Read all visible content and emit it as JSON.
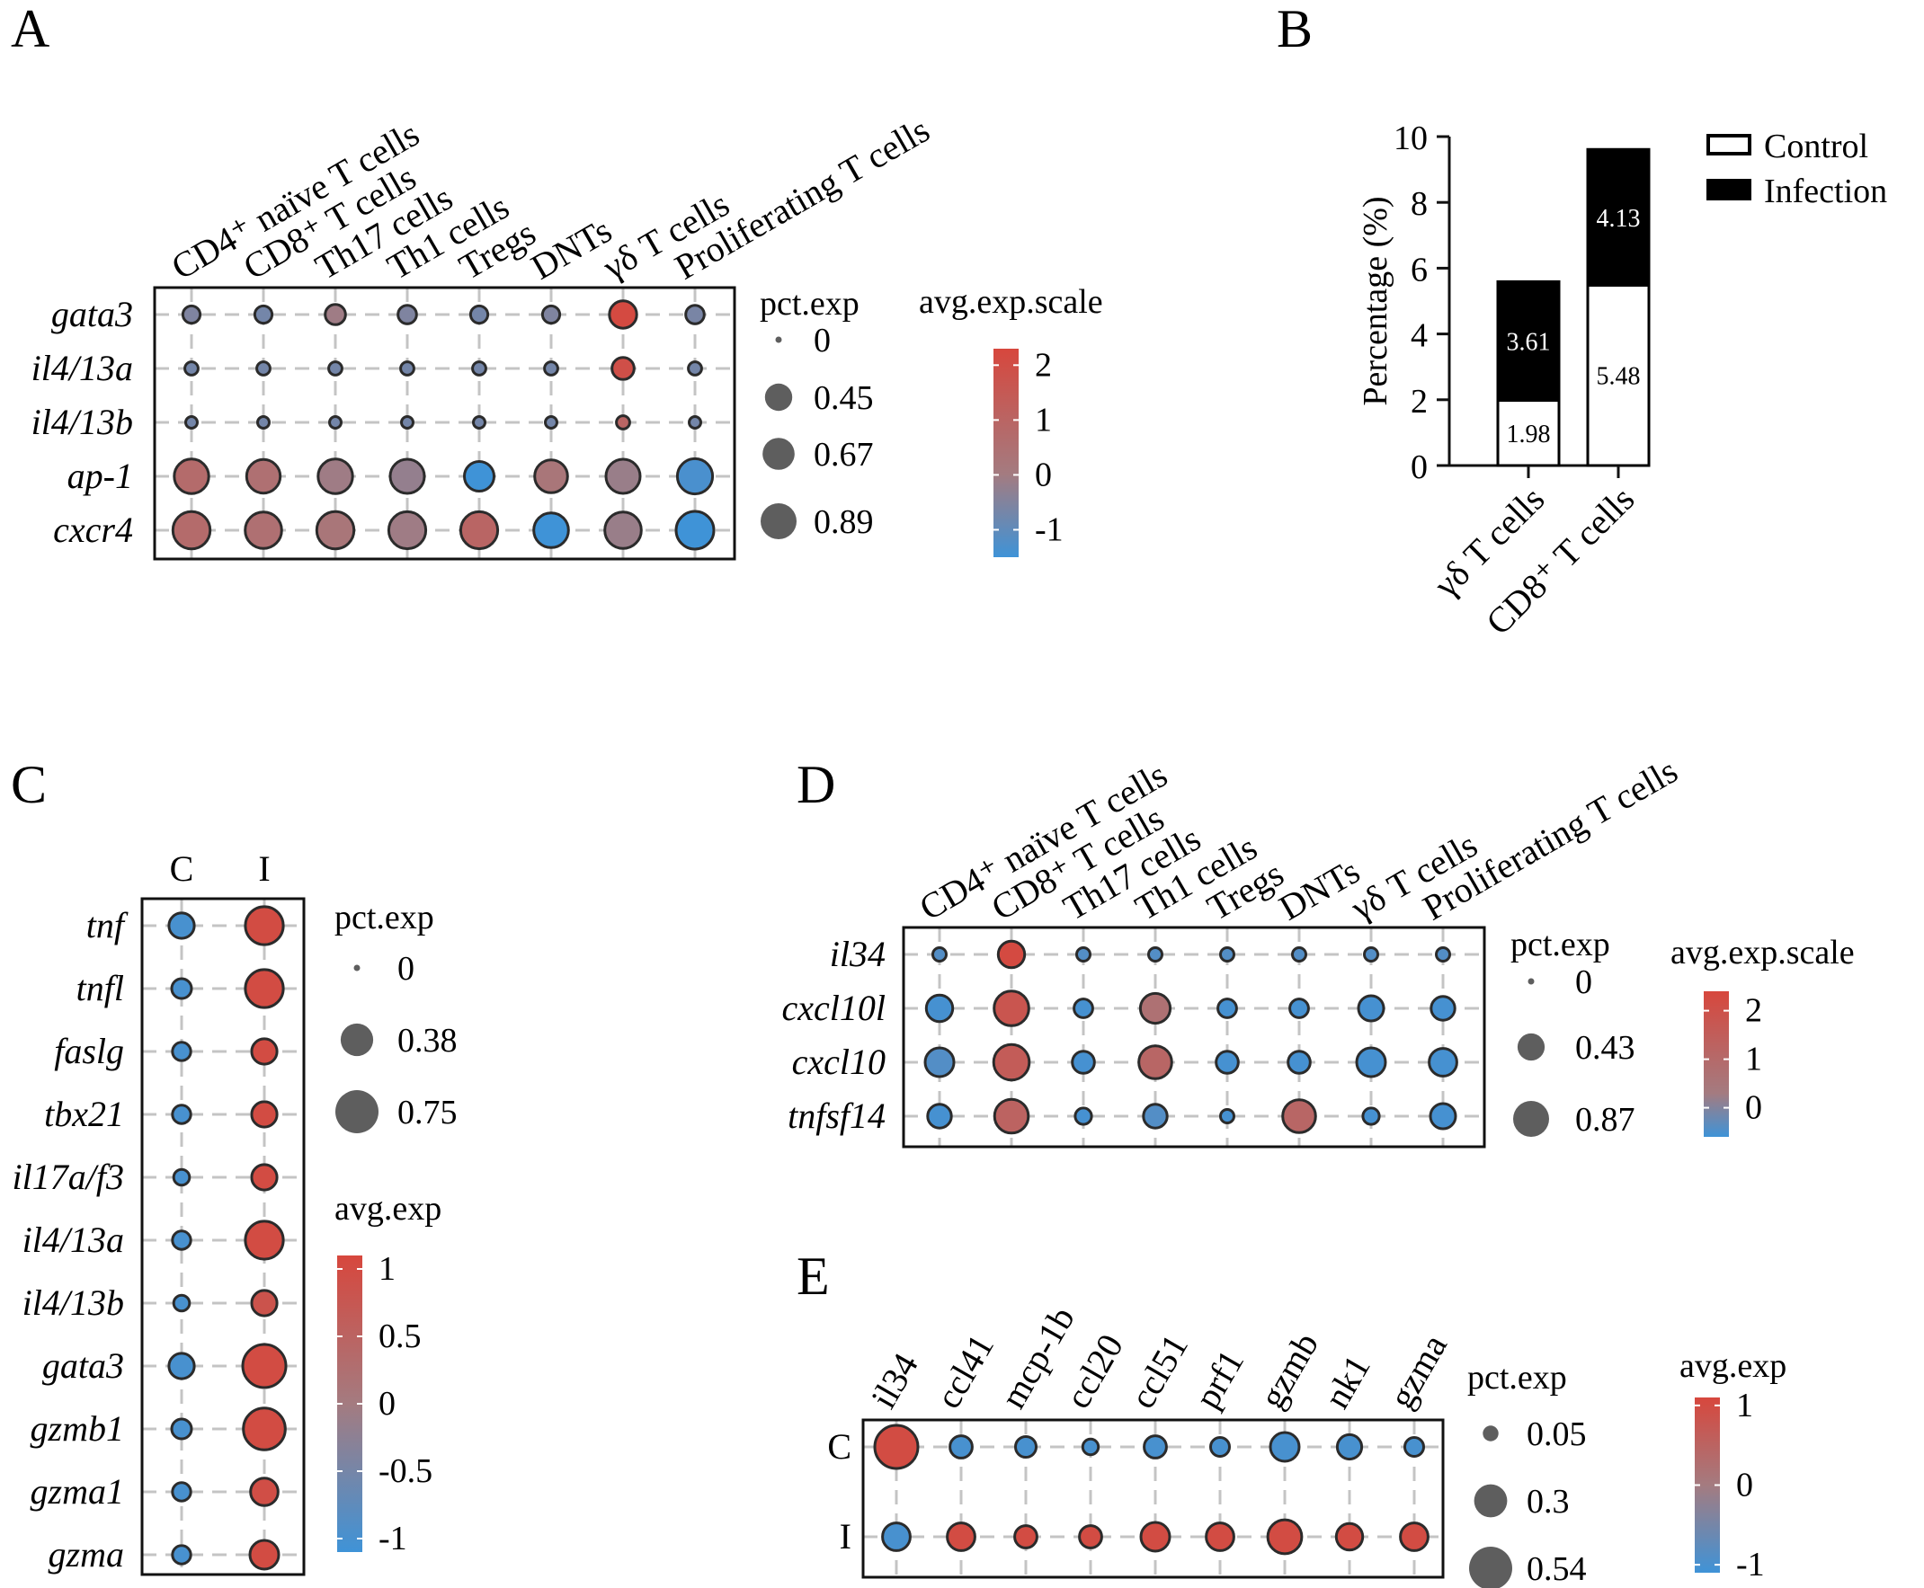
{
  "chart_data": [
    {
      "panel": "A",
      "type": "dotplot",
      "columns": [
        "CD4⁺ naïve T cells",
        "CD8⁺ T cells",
        "Th17 cells",
        "Th1 cells",
        "Tregs",
        "DNTs",
        "γδ T cells",
        "Proliferating T  cells"
      ],
      "rows": [
        "gata3",
        "il4/13a",
        "il4/13b",
        "ap-1",
        "cxcr4"
      ],
      "pct_exp": [
        [
          0.12,
          0.12,
          0.2,
          0.15,
          0.12,
          0.12,
          0.45,
          0.15
        ],
        [
          0.05,
          0.05,
          0.05,
          0.05,
          0.05,
          0.05,
          0.25,
          0.05
        ],
        [
          0.03,
          0.03,
          0.03,
          0.03,
          0.03,
          0.03,
          0.05,
          0.03
        ],
        [
          0.8,
          0.75,
          0.8,
          0.78,
          0.55,
          0.72,
          0.78,
          0.85
        ],
        [
          0.97,
          0.92,
          0.97,
          0.95,
          0.95,
          0.82,
          0.92,
          1.0
        ]
      ],
      "avg_exp_scale": [
        [
          -0.3,
          -0.5,
          0.3,
          -0.3,
          -0.5,
          -0.3,
          2.2,
          -0.4
        ],
        [
          -0.5,
          -0.5,
          -0.5,
          -0.5,
          -0.5,
          -0.5,
          2.0,
          -0.5
        ],
        [
          -0.5,
          -0.5,
          -0.5,
          -0.5,
          -0.5,
          -0.5,
          1.2,
          -0.5
        ],
        [
          1.0,
          0.8,
          0.3,
          0.1,
          -1.5,
          0.6,
          0.2,
          -1.3
        ],
        [
          1.0,
          0.8,
          0.6,
          0.3,
          1.2,
          -1.5,
          0.2,
          -1.5
        ]
      ],
      "size_legend": {
        "title": "pct.exp",
        "labels": [
          "0",
          "0.45",
          "0.67",
          "0.89"
        ],
        "values": [
          0,
          0.45,
          0.67,
          0.89
        ]
      },
      "color_legend": {
        "title": "avg.exp.scale",
        "labels": [
          "2",
          "1",
          "0",
          "-1"
        ],
        "values": [
          2,
          1,
          0,
          -1
        ],
        "range": [
          -1.5,
          2.3
        ]
      }
    },
    {
      "panel": "B",
      "type": "stacked_bar",
      "categories": [
        "γδ T cells",
        "CD8⁺ T cells"
      ],
      "series": [
        {
          "name": "Control",
          "values": [
            1.98,
            5.48
          ],
          "labels": [
            "1.98",
            "5.48"
          ]
        },
        {
          "name": "Infection",
          "values": [
            3.61,
            4.13
          ],
          "labels": [
            "3.61",
            "4.13"
          ]
        }
      ],
      "ylabel": "Percentage   (%)",
      "yticks": [
        "0",
        "2",
        "4",
        "6",
        "8",
        "10"
      ],
      "ylim": [
        0,
        10
      ]
    },
    {
      "panel": "C",
      "type": "dotplot",
      "columns": [
        "C",
        "I"
      ],
      "rows": [
        "tnf",
        "tnfl",
        "faslg",
        "tbx21",
        "il17a/f3",
        "il4/13a",
        "il4/13b",
        "gata3",
        "gzmb1",
        "gzma1",
        "gzma"
      ],
      "pct_exp": [
        [
          0.2,
          0.55
        ],
        [
          0.1,
          0.55
        ],
        [
          0.08,
          0.2
        ],
        [
          0.08,
          0.2
        ],
        [
          0.05,
          0.2
        ],
        [
          0.08,
          0.55
        ],
        [
          0.05,
          0.2
        ],
        [
          0.2,
          0.75
        ],
        [
          0.1,
          0.7
        ],
        [
          0.08,
          0.25
        ],
        [
          0.08,
          0.28
        ]
      ],
      "avg_exp": [
        [
          -1,
          1
        ],
        [
          -1,
          1
        ],
        [
          -1,
          1
        ],
        [
          -1,
          1
        ],
        [
          -1,
          1
        ],
        [
          -1,
          1
        ],
        [
          -1,
          0.85
        ],
        [
          -1,
          1
        ],
        [
          -1,
          1
        ],
        [
          -1,
          0.95
        ],
        [
          -1,
          1
        ]
      ],
      "size_legend": {
        "title": "pct.exp",
        "labels": [
          "0",
          "0.38",
          "0.75"
        ],
        "values": [
          0,
          0.38,
          0.75
        ]
      },
      "color_legend": {
        "title": "avg.exp",
        "labels": [
          "1",
          "0.5",
          "0",
          "-0.5",
          "-1"
        ],
        "values": [
          1,
          0.5,
          0,
          -0.5,
          -1
        ],
        "range": [
          -1.1,
          1.1
        ]
      }
    },
    {
      "panel": "D",
      "type": "dotplot",
      "columns": [
        "CD4⁺ naïve T cells",
        "CD8⁺ T cells",
        "Th17 cells",
        "Th1 cells",
        "Tregs",
        "DNTs",
        "γδ T cells",
        "Proliferating T  cells"
      ],
      "rows": [
        "il34",
        "cxcl10l",
        "cxcl10",
        "tnfsf14"
      ],
      "pct_exp": [
        [
          0.05,
          0.4,
          0.05,
          0.05,
          0.05,
          0.05,
          0.05,
          0.05
        ],
        [
          0.4,
          0.8,
          0.15,
          0.55,
          0.15,
          0.15,
          0.35,
          0.3
        ],
        [
          0.5,
          0.85,
          0.25,
          0.7,
          0.25,
          0.25,
          0.5,
          0.45
        ],
        [
          0.3,
          0.75,
          0.1,
          0.3,
          0.05,
          0.7,
          0.1,
          0.35
        ]
      ],
      "avg_exp_scale": [
        [
          -0.3,
          2.3,
          -0.3,
          -0.3,
          -0.3,
          -0.3,
          -0.3,
          -0.3
        ],
        [
          -0.5,
          2.0,
          -0.5,
          1.2,
          -0.5,
          -0.5,
          -0.5,
          -0.5
        ],
        [
          -0.3,
          1.8,
          -0.5,
          1.5,
          -0.5,
          -0.5,
          -0.5,
          -0.5
        ],
        [
          -0.5,
          1.6,
          -0.5,
          -0.3,
          -0.5,
          1.5,
          -0.5,
          -0.5
        ]
      ],
      "size_legend": {
        "title": "pct.exp",
        "labels": [
          "0",
          "0.43",
          "0.87"
        ],
        "values": [
          0,
          0.43,
          0.87
        ]
      },
      "color_legend": {
        "title": "avg.exp.scale",
        "labels": [
          "2",
          "1",
          "0"
        ],
        "values": [
          2,
          1,
          0
        ],
        "range": [
          -0.6,
          2.4
        ]
      }
    },
    {
      "panel": "E",
      "type": "dotplot",
      "columns": [
        "il34",
        "ccl41",
        "mcp-1b",
        "ccl20",
        "ccl51",
        "prf1",
        "gzmb",
        "nk1",
        "gzma"
      ],
      "rows": [
        "C",
        "I"
      ],
      "pct_exp": [
        [
          0.54,
          0.12,
          0.1,
          0.05,
          0.12,
          0.08,
          0.22,
          0.15,
          0.08
        ],
        [
          0.2,
          0.2,
          0.12,
          0.12,
          0.22,
          0.2,
          0.32,
          0.18,
          0.2
        ]
      ],
      "avg_exp": [
        [
          1,
          -1,
          -1,
          -1,
          -1,
          -1,
          -1,
          -1,
          -1
        ],
        [
          -1,
          1,
          1,
          1,
          1,
          1,
          1,
          1,
          1
        ]
      ],
      "size_legend": {
        "title": "pct.exp",
        "labels": [
          "0.05",
          "0.3",
          "0.54"
        ],
        "values": [
          0.05,
          0.3,
          0.54
        ]
      },
      "color_legend": {
        "title": "avg.exp",
        "labels": [
          "1",
          "0",
          "-1"
        ],
        "values": [
          1,
          0,
          -1
        ],
        "range": [
          -1.1,
          1.1
        ]
      }
    }
  ],
  "panels": {
    "A": "A",
    "B": "B",
    "C": "C",
    "D": "D",
    "E": "E"
  },
  "colors": {
    "high": "#d7473d",
    "mid": "#a47b80",
    "low": "#3f93d7",
    "dot_stroke": "#2b2b2b",
    "legend_dot": "#5e5e5e"
  }
}
